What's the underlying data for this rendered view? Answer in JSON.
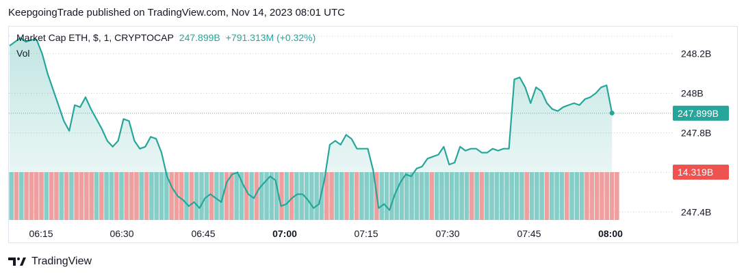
{
  "header": {
    "published_line": "KeepgoingTrade published on TradingView.com, Nov 14, 2023 08:01 UTC"
  },
  "legend": {
    "symbol": "Market Cap ETH, $, 1, CRYPTOCAP",
    "last_value": "247.899B",
    "change": "+791.313M (+0.32%)"
  },
  "volume_label": "Vol",
  "footer": {
    "brand": "TradingView",
    "logo_icon": "tradingview-logo-icon"
  },
  "colors": {
    "line": "#26a69a",
    "area": "#26a69a",
    "volume_up": "#80cbc4",
    "volume_down": "#ef9a9a",
    "price_badge": "#26a69a",
    "volume_badge": "#ef5350"
  },
  "chart_data": {
    "type": "area",
    "title": "Market Cap ETH, $, 1, CRYPTOCAP",
    "x_tick_labels": [
      "06:15",
      "06:30",
      "06:45",
      "07:00",
      "07:15",
      "07:30",
      "07:45",
      "08:00"
    ],
    "bold_x_ticks": [
      "07:00",
      "08:00"
    ],
    "y_tick_labels": [
      "248.2B",
      "248B",
      "247.8B",
      "247.6B",
      "247.4B"
    ],
    "y_ticks": [
      248.2,
      248.0,
      247.8,
      247.6,
      247.4
    ],
    "ylim": [
      247.36,
      248.34
    ],
    "x_start": "06:10",
    "x_step_minutes": 1,
    "x_end": "08:10",
    "current_value_label": "247.899B",
    "current_value": 247.899,
    "volume_value_label": "14.319B",
    "series": [
      {
        "values": [
          248.24,
          248.26,
          248.28,
          248.26,
          248.27,
          248.27,
          248.2,
          248.1,
          248.02,
          247.94,
          247.86,
          247.81,
          247.94,
          247.93,
          247.98,
          247.92,
          247.87,
          247.82,
          247.76,
          247.73,
          247.76,
          247.87,
          247.86,
          247.76,
          247.72,
          247.73,
          247.78,
          247.77,
          247.7,
          247.58,
          247.52,
          247.48,
          247.46,
          247.43,
          247.45,
          247.42,
          247.47,
          247.49,
          247.47,
          247.45,
          247.55,
          247.59,
          247.6,
          247.54,
          247.49,
          247.47,
          247.52,
          247.55,
          247.58,
          247.56,
          247.43,
          247.44,
          247.47,
          247.49,
          247.49,
          247.46,
          247.42,
          247.44,
          247.56,
          247.74,
          247.76,
          247.74,
          247.79,
          247.77,
          247.72,
          247.72,
          247.72,
          247.61,
          247.42,
          247.44,
          247.41,
          247.49,
          247.55,
          247.59,
          247.58,
          247.62,
          247.63,
          247.67,
          247.68,
          247.69,
          247.73,
          247.64,
          247.65,
          247.73,
          247.71,
          247.72,
          247.72,
          247.7,
          247.7,
          247.72,
          247.71,
          247.72,
          247.72,
          248.07,
          248.08,
          248.03,
          247.95,
          248.03,
          248.01,
          247.95,
          247.92,
          247.91,
          247.93,
          247.94,
          247.95,
          247.94,
          247.97,
          247.98,
          248.0,
          248.03,
          248.04,
          247.9
        ],
        "overlay_values": [
          248.0,
          248.01,
          248.02,
          247.99,
          247.96,
          247.93,
          247.89,
          247.85,
          247.81,
          247.8,
          247.74,
          247.71,
          247.76,
          247.79,
          247.81,
          247.93,
          247.93,
          247.91,
          247.93,
          247.92,
          247.94,
          247.92,
          247.94,
          247.98,
          248.0,
          247.99,
          248.02,
          248.02,
          247.96,
          247.94,
          247.91,
          247.9,
          247.88,
          247.88
        ]
      }
    ],
    "volume_direction": [
      "u",
      "d",
      "u",
      "d",
      "d",
      "d",
      "d",
      "u",
      "d",
      "d",
      "u",
      "d",
      "u",
      "d",
      "d",
      "d",
      "d",
      "u",
      "d",
      "u",
      "u",
      "d",
      "u",
      "d",
      "d",
      "d",
      "u",
      "d",
      "u",
      "u",
      "u",
      "u",
      "d",
      "d",
      "d",
      "u",
      "d",
      "u",
      "u",
      "u",
      "d",
      "u",
      "u",
      "d",
      "d",
      "u",
      "u",
      "d",
      "u",
      "d",
      "u",
      "u",
      "u",
      "u",
      "d",
      "u",
      "d",
      "u",
      "u",
      "u",
      "u",
      "u",
      "u",
      "d",
      "d",
      "u",
      "u",
      "d",
      "u",
      "d",
      "u",
      "u",
      "u",
      "d",
      "u",
      "u",
      "u",
      "u",
      "u",
      "u",
      "u",
      "u",
      "u",
      "u",
      "d",
      "u",
      "u",
      "u",
      "u",
      "u",
      "u",
      "u",
      "d",
      "u",
      "d",
      "u",
      "u",
      "u",
      "u",
      "u",
      "u",
      "u",
      "u",
      "d",
      "u",
      "u",
      "u",
      "d",
      "u",
      "u",
      "u",
      "d",
      "u",
      "u",
      "u",
      "d",
      "d",
      "d",
      "d",
      "d",
      "d",
      "d"
    ],
    "volume_level": 0.55
  }
}
